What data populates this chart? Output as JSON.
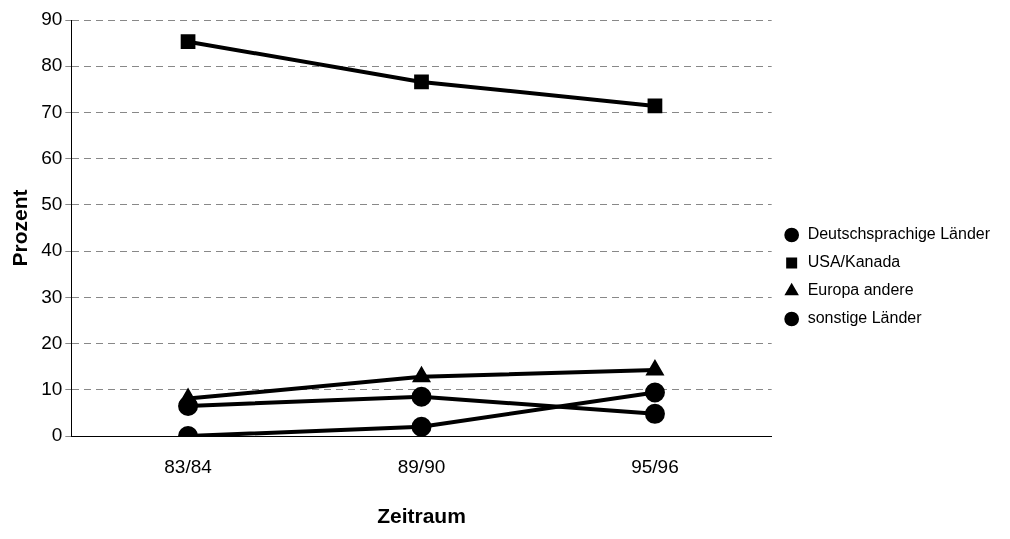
{
  "chart_data": {
    "type": "line",
    "xlabel": "Zeitraum",
    "ylabel": "Prozent",
    "categories": [
      "83/84",
      "89/90",
      "95/96"
    ],
    "series": [
      {
        "name": "Deutschsprachige Länder",
        "color": "#000000",
        "marker": "circle",
        "values": [
          0,
          2,
          9.4
        ]
      },
      {
        "name": "USA/Kanada",
        "color": "#000000",
        "marker": "square",
        "values": [
          85.3,
          76.6,
          71.4
        ]
      },
      {
        "name": "Europa andere",
        "color": "#000000",
        "marker": "triangle",
        "values": [
          8.1,
          12.8,
          14.3
        ]
      },
      {
        "name": "sonstige Länder",
        "color": "#000000",
        "marker": "circle",
        "values": [
          6.5,
          8.5,
          4.8
        ]
      }
    ],
    "ylim": [
      0,
      90
    ],
    "yticks": [
      0,
      10,
      20,
      30,
      40,
      50,
      60,
      70,
      80,
      90
    ],
    "grid": "y",
    "legend": "right",
    "line_style": "solid"
  }
}
